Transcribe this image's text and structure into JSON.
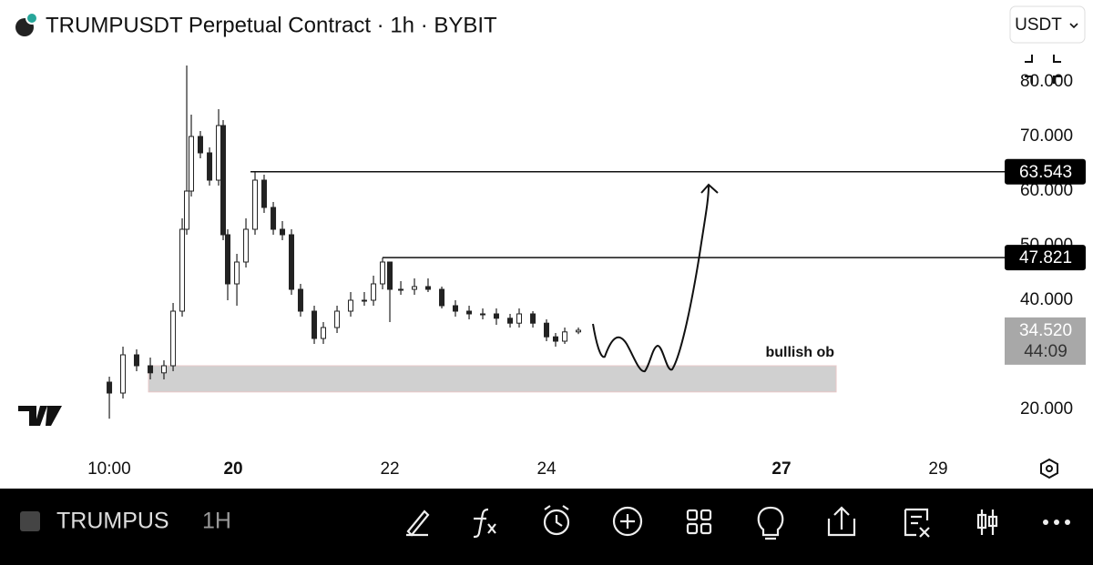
{
  "header": {
    "title": "TRUMPUSDT Perpetual Contract · 1h · BYBIT",
    "currency_button": "USDT"
  },
  "chart_data": {
    "type": "candlestick",
    "x": [
      18.419,
      18.593,
      18.767,
      18.942,
      19.116,
      19.233,
      19.349,
      19.407,
      19.465,
      19.581,
      19.698,
      19.814,
      19.872,
      19.93,
      20.047,
      20.163,
      20.279,
      20.395,
      20.512,
      20.628,
      20.744,
      20.86,
      21.035,
      21.151,
      21.326,
      21.5,
      21.674,
      21.791,
      21.907,
      22.0,
      22.14,
      22.314,
      22.488,
      22.663,
      22.837,
      23.012,
      23.186,
      23.36,
      23.535,
      23.651,
      23.826,
      24.0,
      24.116,
      24.233,
      24.407
    ],
    "open": [
      25,
      23,
      30,
      28,
      26.7,
      28,
      38,
      53,
      60,
      70,
      67,
      62,
      72,
      52,
      43,
      47,
      53,
      62,
      57,
      53,
      52,
      42,
      38,
      33,
      35,
      38,
      40,
      40,
      43,
      47,
      42,
      42,
      42.5,
      42,
      39,
      38,
      37.5,
      37.5,
      36.7,
      35.8,
      37.5,
      35.8,
      33.3,
      32.5,
      34.2
    ],
    "high": [
      26,
      31.5,
      31,
      29.5,
      29,
      39.5,
      55,
      83,
      74,
      71,
      68,
      75,
      73,
      53,
      48.5,
      55,
      63.5,
      63,
      58,
      54.5,
      53,
      43,
      39,
      36,
      39,
      41.5,
      41.5,
      44.5,
      47.8,
      47,
      43.5,
      44,
      44,
      42.5,
      40,
      39,
      38.5,
      38.5,
      37.5,
      38.5,
      38,
      36.5,
      34,
      35,
      35
    ],
    "low": [
      18.3,
      22,
      27,
      25.5,
      25.5,
      27,
      37,
      52,
      59,
      66,
      61,
      61,
      51,
      40,
      39,
      46,
      52,
      56,
      52,
      51,
      41,
      37,
      32,
      32,
      34,
      37,
      39,
      39,
      42,
      36,
      41,
      41,
      41.5,
      38.5,
      37,
      36.5,
      36.5,
      35.5,
      35,
      35,
      35,
      32.5,
      31.5,
      32,
      33.8
    ],
    "close": [
      23,
      30,
      28,
      26.7,
      28,
      38,
      53,
      60,
      70,
      67,
      62,
      72,
      52,
      43,
      47,
      53,
      62,
      57,
      53,
      52,
      42,
      38,
      33,
      35,
      38,
      40,
      40,
      43,
      47,
      42,
      42,
      42.5,
      42,
      39,
      38,
      37.5,
      37.5,
      36.7,
      35.8,
      37.5,
      35.8,
      33.3,
      32.5,
      34.2,
      34.5
    ],
    "up_color": "#ffffff",
    "down_color": "#222222",
    "xlim": [
      17.023,
      29.814
    ],
    "xticks": [
      {
        "value": 18.417,
        "label": "10:00"
      },
      20,
      22,
      24,
      27,
      29
    ],
    "ylim": [
      10,
      95
    ],
    "yticks": [
      {
        "value": 20,
        "label": "20.000"
      },
      {
        "value": 40,
        "label": "40.000"
      },
      {
        "value": 50,
        "label": "50.000"
      },
      {
        "value": 60,
        "label": "60.000"
      },
      {
        "value": 70,
        "label": "70.000"
      },
      {
        "value": 80,
        "label": "80.000"
      }
    ],
    "levels": [
      {
        "value": 63.543,
        "start": 20.221
      },
      {
        "value": 47.821,
        "start": 21.907
      }
    ],
    "zone": {
      "label": "bullish ob",
      "low": 23.2,
      "high": 28,
      "start": 18.919,
      "end": 27.698
    },
    "last_price": {
      "value": 34.52,
      "label": "34.520",
      "countdown": "44:09"
    }
  },
  "footer": {
    "symbol": "TRUMPUS",
    "interval": "1H"
  }
}
